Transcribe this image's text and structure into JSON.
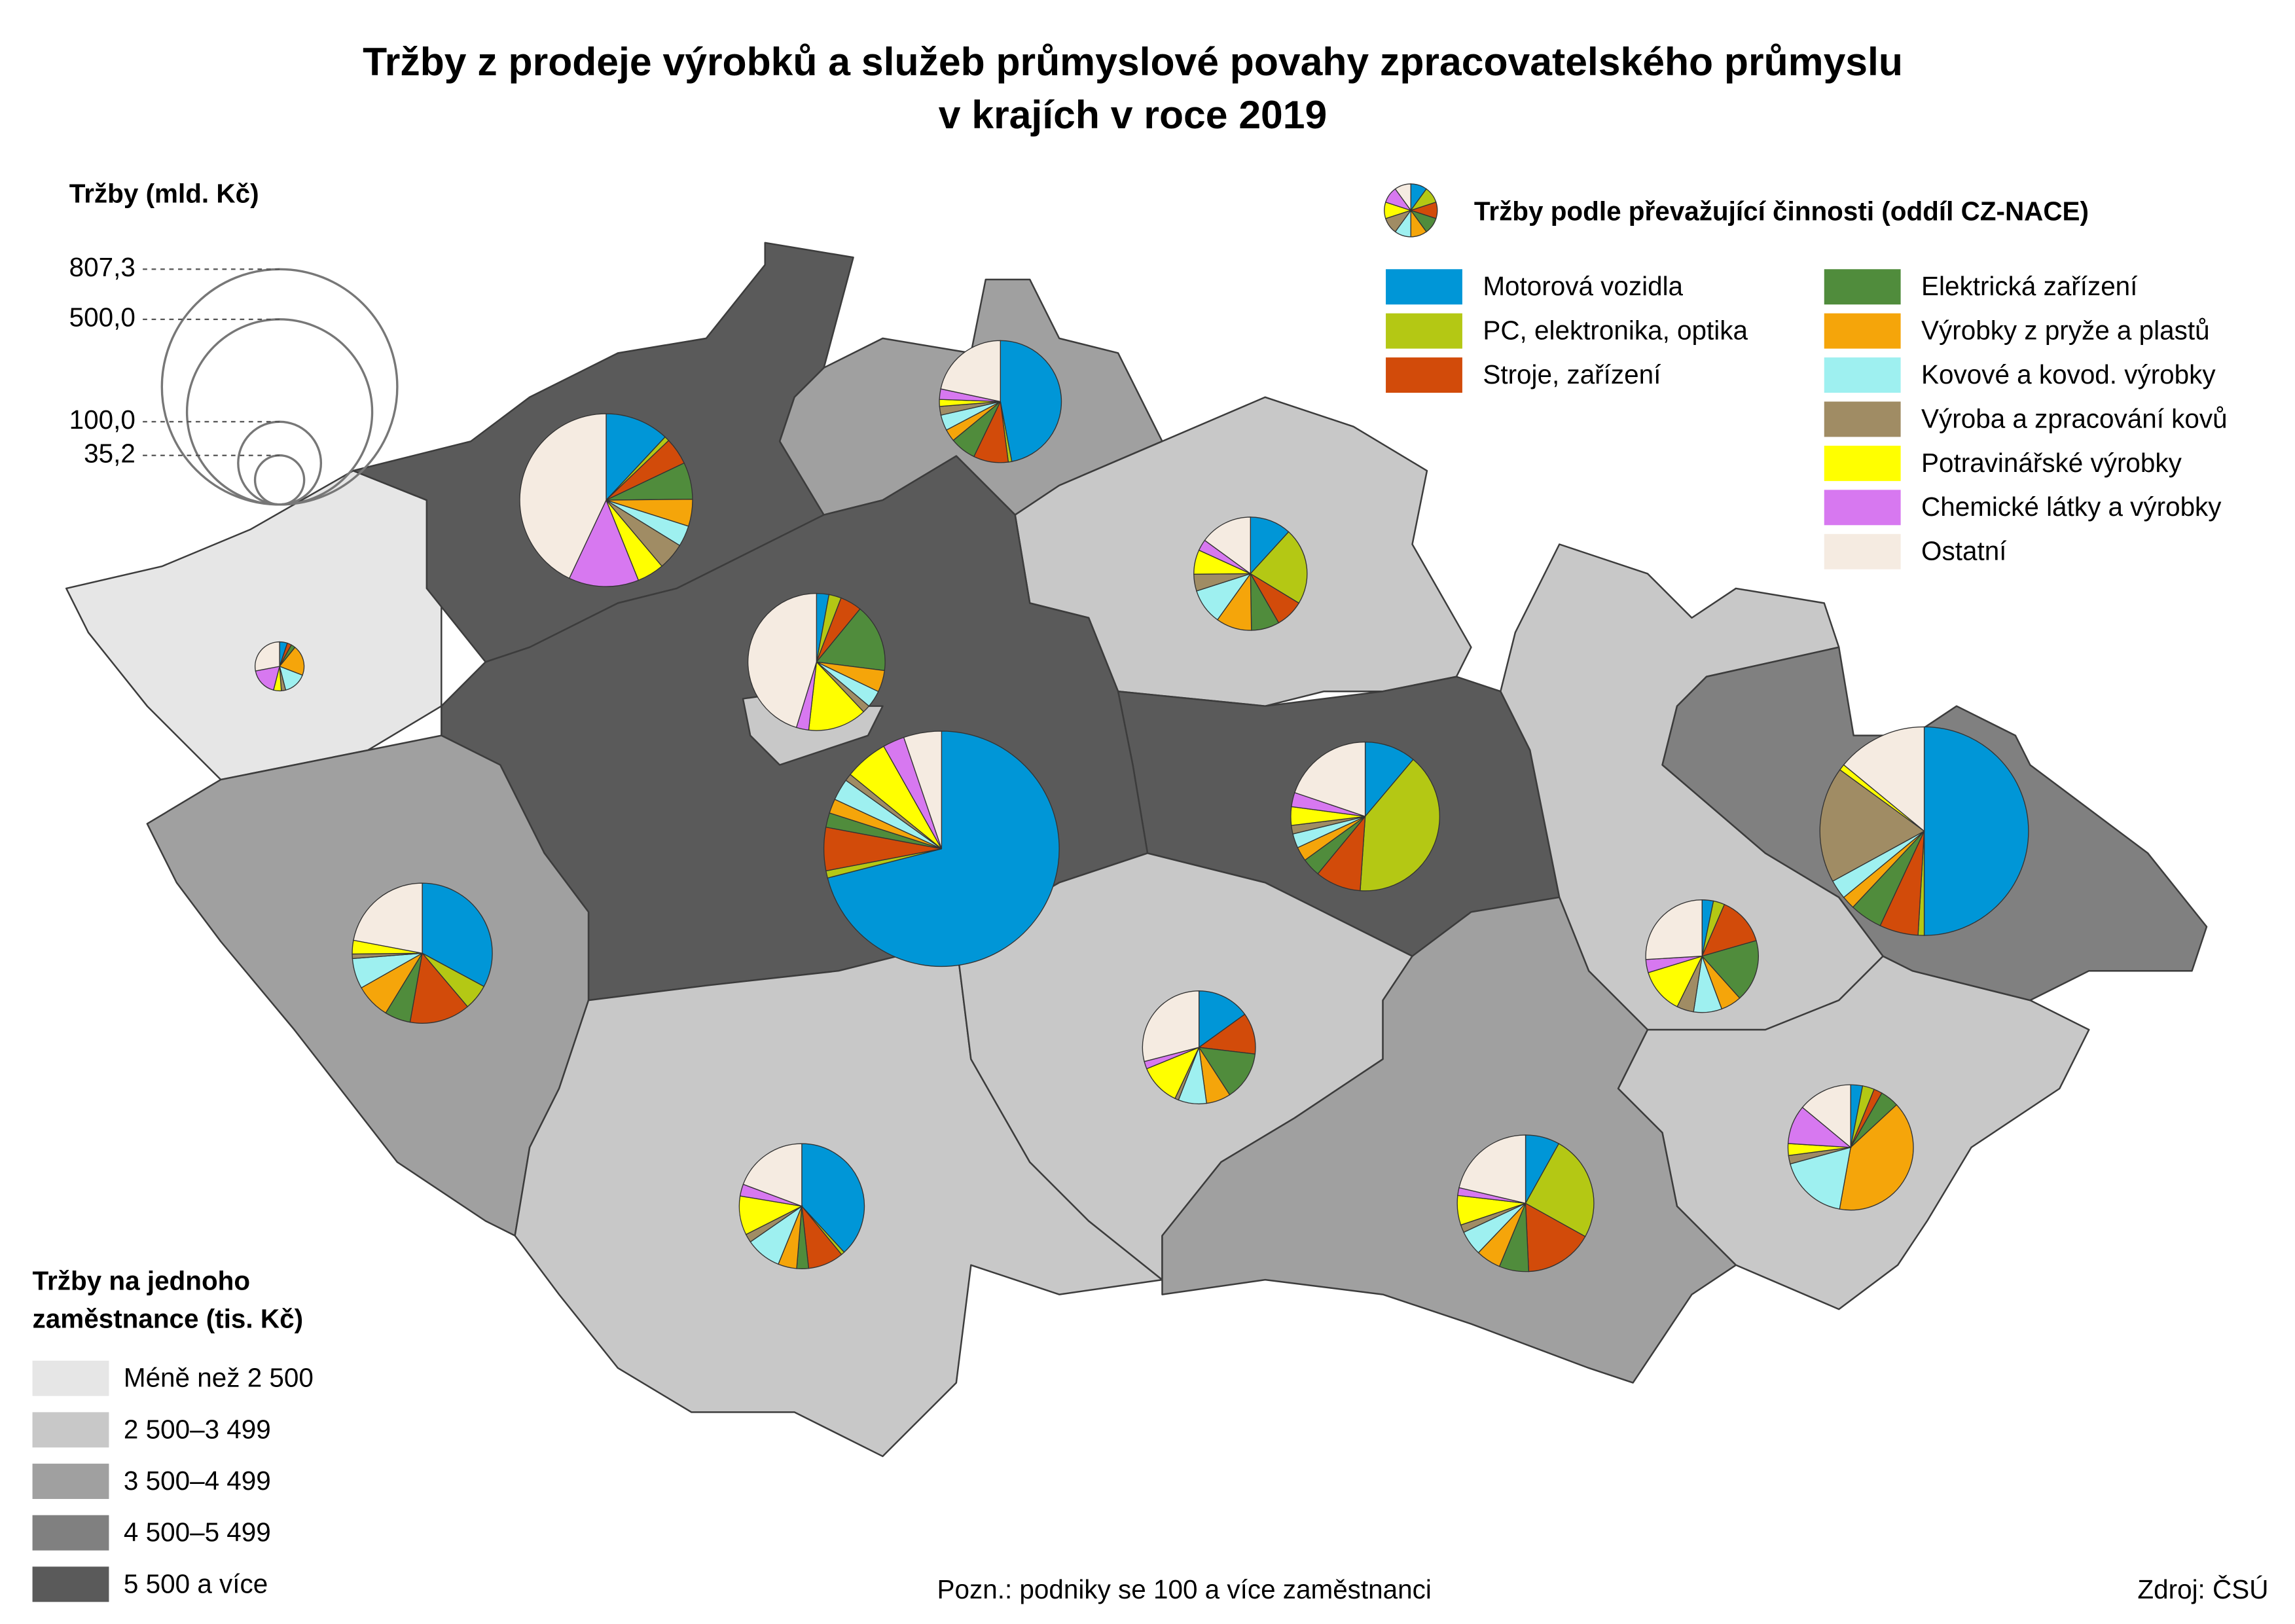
{
  "title": [
    "Tržby z prodeje výrobků a služeb průmyslové povahy zpracovatelského průmyslu",
    "v krajích v roce 2019"
  ],
  "size_legend": {
    "title": "Tržby (mld. Kč)",
    "ticks": [
      {
        "value": 807.3,
        "label": "807,3"
      },
      {
        "value": 500.0,
        "label": "500,0"
      },
      {
        "value": 100.0,
        "label": "100,0"
      },
      {
        "value": 35.2,
        "label": "35,2"
      }
    ]
  },
  "category_legend": {
    "title": "Tržby podle převažující činnosti (oddíl CZ-NACE)",
    "items": [
      {
        "name": "Motorová vozidla",
        "color": "#0096d7"
      },
      {
        "name": "PC, elektronika, optika",
        "color": "#b4c814"
      },
      {
        "name": "Stroje, zařízení",
        "color": "#d24b0a"
      },
      {
        "name": "Elektrická zařízení",
        "color": "#508c3c"
      },
      {
        "name": "Výrobky z pryže a plastů",
        "color": "#f5a50a"
      },
      {
        "name": "Kovové a kovod. výrobky",
        "color": "#9ef0f0"
      },
      {
        "name": "Výroba a zpracování kovů",
        "color": "#a08c64"
      },
      {
        "name": "Potravinářské výrobky",
        "color": "#ffff00"
      },
      {
        "name": "Chemické látky a výrobky",
        "color": "#d778f0"
      },
      {
        "name": "Ostatní",
        "color": "#f5ebe1"
      }
    ]
  },
  "class_legend": {
    "title": [
      "Tržby na jednoho",
      "zaměstnance (tis. Kč)"
    ],
    "classes": [
      {
        "label": "Méně než 2 500",
        "color": "#e6e6e6"
      },
      {
        "label": "2 500–3 499",
        "color": "#c8c8c8"
      },
      {
        "label": "3 500–4 499",
        "color": "#a0a0a0"
      },
      {
        "label": "4 500–5 499",
        "color": "#808080"
      },
      {
        "label": "5 500 a více",
        "color": "#5a5a5a"
      }
    ]
  },
  "regions": [
    {
      "class": 0,
      "values": [
        1.8,
        0,
        1,
        1,
        7,
        5.3,
        1,
        1.8,
        6.3,
        9.8
      ]
    },
    {
      "class": 4,
      "values": [
        52,
        4,
        22,
        30,
        22,
        17,
        22,
        22,
        57,
        187
      ]
    },
    {
      "class": 2,
      "values": [
        102,
        2,
        20,
        15,
        7,
        9,
        5,
        4,
        6,
        47
      ]
    },
    {
      "class": 1,
      "values": [
        22,
        41,
        15,
        15,
        19,
        19,
        9,
        13,
        6,
        28
      ]
    },
    {
      "class": 4,
      "values": [
        36,
        129,
        32,
        13,
        10,
        10,
        6,
        13,
        10,
        64
      ]
    },
    {
      "class": 4,
      "values": [
        573,
        8,
        48,
        16,
        16,
        24,
        8,
        48,
        24,
        42
      ]
    },
    {
      "class": 1,
      "values": [
        8,
        8,
        14,
        44,
        14,
        11,
        5,
        38,
        8,
        124
      ]
    },
    {
      "class": 2,
      "values": [
        94,
        17,
        40,
        17,
        23,
        20,
        3,
        9,
        0,
        63
      ]
    },
    {
      "class": 1,
      "values": [
        87,
        2,
        21,
        7,
        11,
        21,
        5,
        23,
        7,
        44
      ]
    },
    {
      "class": 1,
      "values": [
        28,
        0,
        22,
        26,
        13,
        15,
        2,
        22,
        4,
        54
      ]
    },
    {
      "class": 2,
      "values": [
        22,
        68,
        44,
        19,
        16,
        16,
        5,
        19,
        5,
        58
      ]
    },
    {
      "class": 1,
      "values": [
        6,
        6,
        26,
        33,
        11,
        15,
        9,
        24,
        7,
        48
      ]
    },
    {
      "class": 1,
      "values": [
        7,
        7,
        5,
        11,
        91,
        41,
        5,
        7,
        23,
        32
      ]
    },
    {
      "class": 3,
      "values": [
        317,
        6,
        38,
        32,
        13,
        19,
        114,
        6,
        0,
        89
      ]
    }
  ],
  "note": "Pozn.: podniky se 100 a více zaměstnanci",
  "source": "Zdroj: ČSÚ"
}
